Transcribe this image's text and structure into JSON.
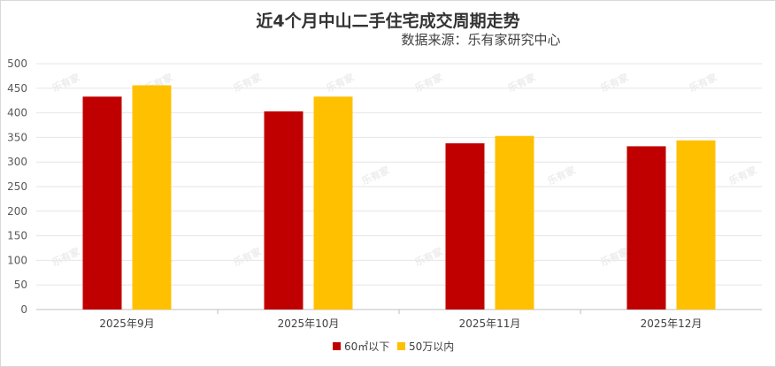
{
  "chart_data": {
    "type": "bar",
    "title": "近4个月中山二手住宅成交周期走势",
    "subtitle": "数据来源：乐有家研究中心",
    "xlabel": "",
    "ylabel": "",
    "ylim": [
      0,
      500
    ],
    "ytick_step": 50,
    "grid": true,
    "legend_position": "bottom",
    "categories": [
      "2025年9月",
      "2025年10月",
      "2025年11月",
      "2025年12月"
    ],
    "series": [
      {
        "name": "60㎡以下",
        "color": "#c00000",
        "values": [
          433,
          403,
          338,
          332
        ]
      },
      {
        "name": "50万以内",
        "color": "#ffc000",
        "values": [
          456,
          433,
          353,
          344
        ]
      }
    ]
  },
  "watermark": "乐有家"
}
